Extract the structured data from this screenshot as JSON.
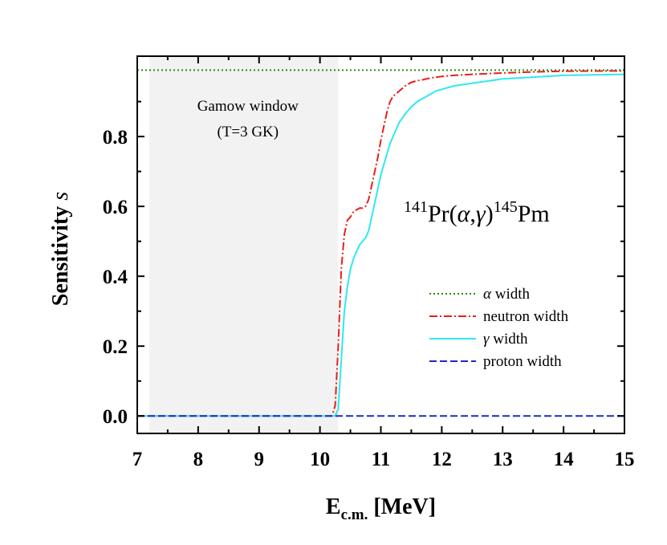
{
  "chart_data": {
    "type": "line",
    "xlabel_main": "E",
    "xlabel_sub": "c.m.",
    "xlabel_unit": " [MeV]",
    "ylabel_main": "Sensitivity ",
    "ylabel_var": "s",
    "xlim": [
      7,
      15
    ],
    "ylim": [
      -0.05,
      1.03
    ],
    "x_ticks": [
      7,
      8,
      9,
      10,
      11,
      12,
      13,
      14,
      15
    ],
    "y_ticks": [
      0.0,
      0.2,
      0.4,
      0.6,
      0.8
    ],
    "y_tick_labels": [
      "0.0",
      "0.2",
      "0.4",
      "0.6",
      "0.8"
    ],
    "grid": false,
    "legend_position": "bottom-right",
    "annotation": {
      "label_line1": "Gamow window",
      "label_line2": "(T=3 GK)",
      "x_range": [
        7.2,
        10.3
      ]
    },
    "reaction": {
      "target_mass": "141",
      "target": "Pr(",
      "alpha": "α",
      "comma": ",",
      "gamma": "γ",
      "close": ")",
      "product_mass": "145",
      "product": "Pm"
    },
    "series": [
      {
        "name": "α width",
        "symbol": "α",
        "suffix": " width",
        "color": "#2a8a1a",
        "dash": "2,3",
        "x": [
          7,
          15
        ],
        "y": [
          0.99,
          0.99
        ]
      },
      {
        "name": "neutron width",
        "symbol": "",
        "suffix": "neutron width",
        "color": "#e8201a",
        "dash": "10,3,2,3",
        "x": [
          7,
          10.2,
          10.25,
          10.3,
          10.35,
          10.4,
          10.45,
          10.5,
          10.55,
          10.6,
          10.65,
          10.7,
          10.75,
          10.8,
          10.85,
          10.9,
          10.95,
          11.0,
          11.05,
          11.1,
          11.15,
          11.2,
          11.3,
          11.4,
          11.5,
          11.6,
          11.7,
          11.8,
          12.0,
          12.2,
          12.5,
          13.0,
          13.5,
          14.0,
          15.0
        ],
        "y": [
          0,
          0,
          0.03,
          0.2,
          0.42,
          0.52,
          0.56,
          0.57,
          0.585,
          0.59,
          0.595,
          0.595,
          0.6,
          0.62,
          0.66,
          0.7,
          0.74,
          0.79,
          0.83,
          0.87,
          0.9,
          0.915,
          0.93,
          0.945,
          0.955,
          0.96,
          0.963,
          0.967,
          0.972,
          0.975,
          0.978,
          0.982,
          0.985,
          0.987,
          0.988
        ]
      },
      {
        "name": "γ width",
        "symbol": "γ",
        "suffix": " width",
        "color": "#2fe8f0",
        "dash": "",
        "x": [
          7,
          10.25,
          10.3,
          10.35,
          10.4,
          10.45,
          10.5,
          10.55,
          10.6,
          10.65,
          10.7,
          10.75,
          10.8,
          10.85,
          10.9,
          10.95,
          11.0,
          11.05,
          11.1,
          11.15,
          11.2,
          11.3,
          11.4,
          11.5,
          11.6,
          11.7,
          11.8,
          11.9,
          12.0,
          12.2,
          12.4,
          12.6,
          12.8,
          13.0,
          13.5,
          14.0,
          15.0
        ],
        "y": [
          0,
          0,
          0.02,
          0.16,
          0.3,
          0.37,
          0.42,
          0.45,
          0.47,
          0.49,
          0.5,
          0.51,
          0.53,
          0.57,
          0.61,
          0.65,
          0.69,
          0.72,
          0.75,
          0.78,
          0.8,
          0.84,
          0.865,
          0.885,
          0.9,
          0.91,
          0.92,
          0.93,
          0.935,
          0.945,
          0.95,
          0.955,
          0.96,
          0.965,
          0.97,
          0.975,
          0.978
        ]
      },
      {
        "name": "proton width",
        "symbol": "",
        "suffix": "proton width",
        "color": "#1a2ad0",
        "dash": "9,4",
        "x": [
          7,
          15
        ],
        "y": [
          0,
          0
        ]
      }
    ]
  }
}
